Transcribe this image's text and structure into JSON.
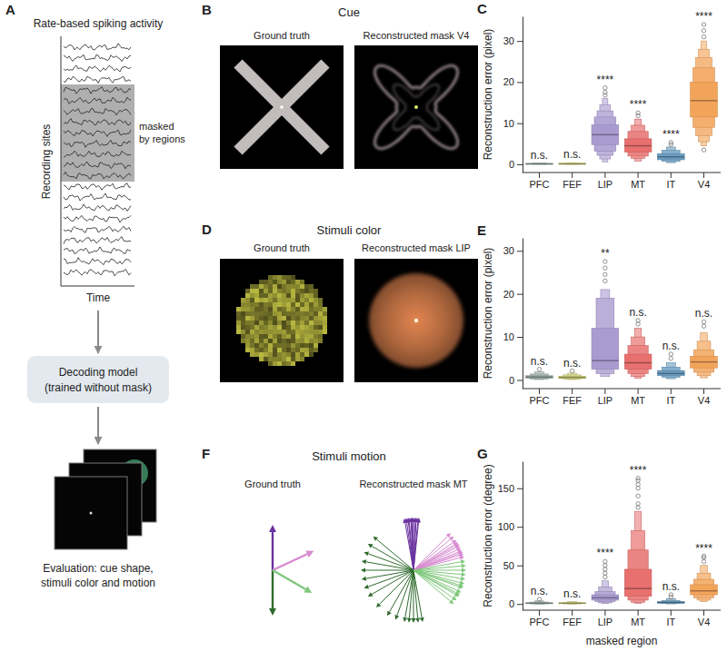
{
  "figure": {
    "A": {
      "label": "A",
      "title": "Rate-based spiking activity",
      "y_label": "Recording sites",
      "x_label": "Time",
      "mask_label": [
        "masked",
        "by regions"
      ],
      "model_label": [
        "Decoding model",
        "(trained without mask)"
      ],
      "evaluation_label": [
        "Evaluation: cue shape,",
        "stimuli color and motion"
      ]
    },
    "B": {
      "label": "B",
      "title": "Cue",
      "ground_truth_label": "Ground truth",
      "reconstruction_label": "Reconstructed mask V4"
    },
    "D": {
      "label": "D",
      "title": "Stimuli color",
      "ground_truth_label": "Ground truth",
      "reconstruction_label": "Reconstructed mask LIP",
      "ground_truth_color": "#9b9a3c",
      "reconstruction_color": "#b0683e"
    },
    "F": {
      "label": "F",
      "title": "Stimuli motion",
      "ground_truth_label": "Ground truth",
      "reconstruction_label": "Reconstructed mask MT",
      "ground_truth": [
        {
          "color": "#6a329f",
          "angles": [
            90
          ]
        },
        {
          "color": "#2f6b2f",
          "angles": [
            270
          ]
        },
        {
          "color": "#d78ad0",
          "angles": [
            25
          ]
        },
        {
          "color": "#80c77c",
          "angles": [
            -30
          ]
        }
      ],
      "reconstruction": [
        {
          "color": "#6a329f",
          "angles": [
            88,
            92,
            95,
            85,
            98,
            90,
            93,
            87,
            100,
            84,
            91,
            96
          ]
        },
        {
          "color": "#2f6b2f",
          "angles": [
            270,
            265,
            275,
            260,
            280,
            250,
            240,
            225,
            210,
            200,
            190,
            180,
            170,
            160,
            150,
            140
          ]
        },
        {
          "color": "#d78ad0",
          "angles": [
            20,
            25,
            30,
            35,
            28,
            22,
            40,
            45,
            32,
            18,
            15
          ]
        },
        {
          "color": "#80c77c",
          "angles": [
            -30,
            -25,
            -20,
            -15,
            -10,
            -5,
            0,
            5,
            -35,
            -40,
            10,
            -28,
            -18
          ]
        }
      ]
    }
  },
  "chart_data": [
    {
      "type": "boxen",
      "panel_label": "C",
      "ylabel": "Reconstruction error (pixel)",
      "categories": [
        "PFC",
        "FEF",
        "LIP",
        "MT",
        "IT",
        "V4"
      ],
      "series": [
        {
          "color": "#9fb0a8",
          "median": 0.1,
          "boxes": [
            [
              0,
              0.2
            ],
            [
              0,
              0.3
            ]
          ],
          "outliers": []
        },
        {
          "color": "#cfd07a",
          "median": 0.1,
          "boxes": [
            [
              0,
              0.25
            ],
            [
              0,
              0.35
            ]
          ],
          "outliers": []
        },
        {
          "color": "#a99bd0",
          "median": 7.2,
          "boxes": [
            [
              4.8,
              9.6
            ],
            [
              3.2,
              11.5
            ],
            [
              2.2,
              13
            ],
            [
              1.3,
              14.5
            ],
            [
              0.6,
              16
            ]
          ],
          "outliers": [
            16.8,
            17.5,
            18.6
          ]
        },
        {
          "color": "#e8706e",
          "median": 4.5,
          "boxes": [
            [
              3,
              6.2
            ],
            [
              2,
              8
            ],
            [
              1.4,
              9.5
            ],
            [
              0.8,
              11
            ]
          ],
          "outliers": [
            11.8,
            12.5
          ]
        },
        {
          "color": "#6a9cc0",
          "median": 1.8,
          "boxes": [
            [
              1.1,
              2.6
            ],
            [
              0.7,
              3.4
            ],
            [
              0.4,
              4.2
            ]
          ],
          "outliers": [
            4.8,
            5.3
          ]
        },
        {
          "color": "#f2a45a",
          "median": 15.5,
          "boxes": [
            [
              11.5,
              20
            ],
            [
              9,
              23.5
            ],
            [
              7,
              26
            ],
            [
              5.5,
              28
            ],
            [
              4.5,
              30
            ]
          ],
          "outliers": [
            31,
            32.5,
            34,
            3.5
          ]
        }
      ],
      "significance": [
        "n.s.",
        "n.s.",
        "****",
        "****",
        "****",
        "****"
      ],
      "ylim": [
        -2,
        36
      ],
      "yticks": [
        0,
        10,
        20,
        30
      ],
      "grid": false
    },
    {
      "type": "boxen",
      "panel_label": "E",
      "ylabel": "Reconstruction error (pixel)",
      "categories": [
        "PFC",
        "FEF",
        "LIP",
        "MT",
        "IT",
        "V4"
      ],
      "series": [
        {
          "color": "#9fb0a8",
          "median": 0.7,
          "boxes": [
            [
              0.4,
              1.0
            ],
            [
              0.2,
              1.4
            ],
            [
              0.1,
              1.9
            ]
          ],
          "outliers": [
            2.5
          ]
        },
        {
          "color": "#cfd07a",
          "median": 0.6,
          "boxes": [
            [
              0.35,
              0.9
            ],
            [
              0.2,
              1.2
            ],
            [
              0.1,
              1.6
            ]
          ],
          "outliers": [
            2.1
          ]
        },
        {
          "color": "#a99bd0",
          "median": 4.5,
          "boxes": [
            [
              2.5,
              12
            ],
            [
              1.5,
              19
            ],
            [
              0.8,
              21
            ]
          ],
          "outliers": [
            23,
            24.5,
            26,
            27.5
          ]
        },
        {
          "color": "#e8706e",
          "median": 4,
          "boxes": [
            [
              2.5,
              6
            ],
            [
              1.5,
              8
            ],
            [
              0.8,
              10
            ],
            [
              0.4,
              12
            ]
          ],
          "outliers": [
            13,
            13.8
          ]
        },
        {
          "color": "#6a9cc0",
          "median": 1.5,
          "boxes": [
            [
              1,
              2.2
            ],
            [
              0.6,
              3
            ],
            [
              0.3,
              4
            ]
          ],
          "outliers": [
            5,
            6
          ]
        },
        {
          "color": "#f2a45a",
          "median": 4.2,
          "boxes": [
            [
              2.8,
              5.5
            ],
            [
              1.8,
              7
            ],
            [
              1,
              9
            ],
            [
              0.5,
              11
            ]
          ],
          "outliers": [
            12.5,
            13.5
          ]
        }
      ],
      "significance": [
        "n.s.",
        "n.s.",
        "**",
        "n.s.",
        "n.s.",
        "n.s."
      ],
      "ylim": [
        -2,
        33
      ],
      "yticks": [
        0,
        10,
        20,
        30
      ],
      "grid": false
    },
    {
      "type": "boxen",
      "panel_label": "G",
      "ylabel": "Reconstruction error (degree)",
      "xlabel": "masked region",
      "categories": [
        "PFC",
        "FEF",
        "LIP",
        "MT",
        "IT",
        "V4"
      ],
      "series": [
        {
          "color": "#9fb0a8",
          "median": 1,
          "boxes": [
            [
              0.5,
              1.5
            ],
            [
              0.2,
              2.5
            ],
            [
              0,
              4
            ]
          ],
          "outliers": [
            6
          ]
        },
        {
          "color": "#cfd07a",
          "median": 1,
          "boxes": [
            [
              0.5,
              1.5
            ],
            [
              0.2,
              2
            ],
            [
              0,
              3
            ]
          ],
          "outliers": []
        },
        {
          "color": "#a99bd0",
          "median": 8,
          "boxes": [
            [
              5,
              12
            ],
            [
              3,
              16
            ],
            [
              1.5,
              22
            ],
            [
              0.5,
              30
            ]
          ],
          "outliers": [
            35,
            40,
            45,
            50,
            55
          ]
        },
        {
          "color": "#e8706e",
          "median": 20,
          "boxes": [
            [
              10,
              45
            ],
            [
              5,
              70
            ],
            [
              2,
              95
            ],
            [
              1,
              120
            ]
          ],
          "outliers": [
            125,
            130,
            140,
            150,
            155,
            160,
            163
          ]
        },
        {
          "color": "#6a9cc0",
          "median": 2,
          "boxes": [
            [
              1,
              3
            ],
            [
              0.5,
              4.5
            ],
            [
              0.2,
              7
            ]
          ],
          "outliers": [
            9,
            12
          ]
        },
        {
          "color": "#f2a45a",
          "median": 17,
          "boxes": [
            [
              12,
              25
            ],
            [
              8,
              32
            ],
            [
              5,
              40
            ],
            [
              3,
              50
            ]
          ],
          "outliers": [
            55,
            60,
            62
          ]
        }
      ],
      "significance": [
        "n.s.",
        "n.s.",
        "****",
        "****",
        "n.s.",
        "****"
      ],
      "ylim": [
        -8,
        185
      ],
      "yticks": [
        0,
        50,
        100,
        150
      ],
      "grid": false
    }
  ]
}
